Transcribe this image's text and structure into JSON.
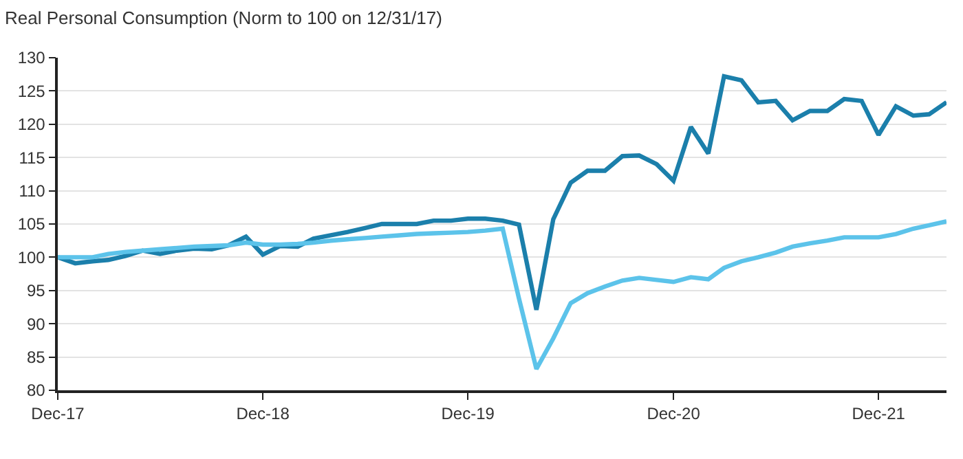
{
  "chart_data": {
    "type": "line",
    "title": "Real Personal Consumption (Norm to 100 on 12/31/17)",
    "x": [
      "2017-12",
      "2018-01",
      "2018-02",
      "2018-03",
      "2018-04",
      "2018-05",
      "2018-06",
      "2018-07",
      "2018-08",
      "2018-09",
      "2018-10",
      "2018-11",
      "2018-12",
      "2019-01",
      "2019-02",
      "2019-03",
      "2019-04",
      "2019-05",
      "2019-06",
      "2019-07",
      "2019-08",
      "2019-09",
      "2019-10",
      "2019-11",
      "2019-12",
      "2020-01",
      "2020-02",
      "2020-03",
      "2020-04",
      "2020-05",
      "2020-06",
      "2020-07",
      "2020-08",
      "2020-09",
      "2020-10",
      "2020-11",
      "2020-12",
      "2021-01",
      "2021-02",
      "2021-03",
      "2021-04",
      "2021-05",
      "2021-06",
      "2021-07",
      "2021-08",
      "2021-09",
      "2021-10",
      "2021-11",
      "2021-12",
      "2022-01",
      "2022-02",
      "2022-03",
      "2022-04"
    ],
    "series": [
      {
        "color": "#1b7fab",
        "values": [
          100,
          99.1,
          99.4,
          99.6,
          100.2,
          101,
          100.5,
          101,
          101.3,
          101.2,
          101.8,
          103.1,
          100.4,
          101.7,
          101.6,
          102.8,
          103.3,
          103.8,
          104.4,
          105,
          105,
          105,
          105.5,
          105.5,
          105.8,
          105.8,
          105.5,
          104.9,
          92.1,
          105.7,
          111.2,
          113,
          113,
          115.2,
          115.3,
          114,
          111.5,
          119.6,
          115.6,
          127.2,
          126.6,
          123.3,
          123.5,
          120.6,
          122,
          122,
          123.8,
          123.5,
          118.4,
          122.7,
          121.3,
          121.5,
          123.3
        ]
      },
      {
        "color": "#5cc3ea",
        "values": [
          100,
          100,
          100,
          100.5,
          100.8,
          101,
          101.2,
          101.4,
          101.6,
          101.7,
          101.8,
          102.2,
          101.9,
          101.9,
          102,
          102.2,
          102.5,
          102.7,
          102.9,
          103.1,
          103.3,
          103.5,
          103.6,
          103.7,
          103.8,
          104,
          104.3,
          93.8,
          83.2,
          87.8,
          93.1,
          94.6,
          95.6,
          96.5,
          96.9,
          96.6,
          96.3,
          97,
          96.7,
          98.4,
          99.4,
          100,
          100.7,
          101.6,
          102.1,
          102.5,
          103,
          103,
          103,
          103.5,
          104.3,
          104.8,
          105.4
        ]
      }
    ],
    "xlim": [
      "2017-12",
      "2022-04"
    ],
    "xticks": [
      {
        "value": "2017-12",
        "label": "Dec-17"
      },
      {
        "value": "2018-12",
        "label": "Dec-18"
      },
      {
        "value": "2019-12",
        "label": "Dec-19"
      },
      {
        "value": "2020-12",
        "label": "Dec-20"
      },
      {
        "value": "2021-12",
        "label": "Dec-21"
      }
    ],
    "ylim": [
      80,
      130
    ],
    "yticks": [
      80,
      85,
      90,
      95,
      100,
      105,
      110,
      115,
      120,
      125,
      130
    ],
    "grid": "y",
    "line_style": "solid",
    "marker": "none"
  }
}
